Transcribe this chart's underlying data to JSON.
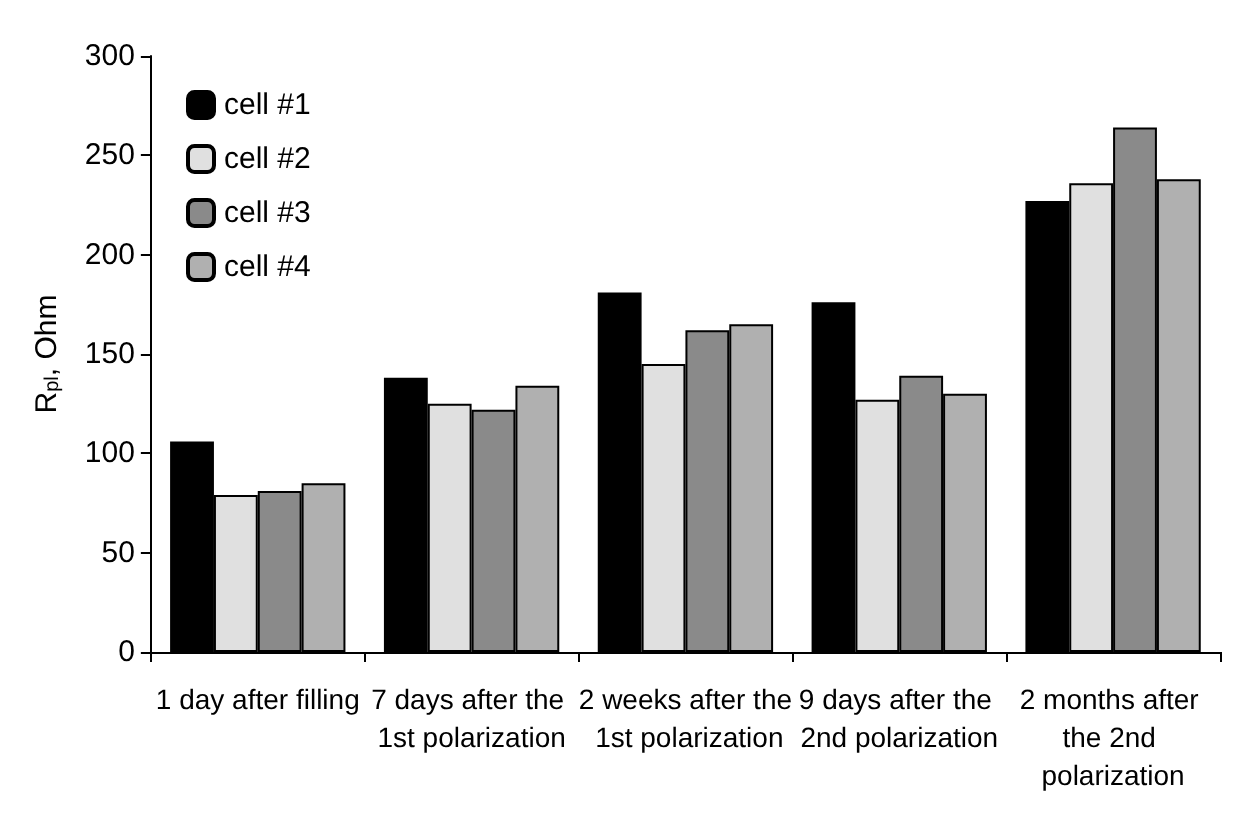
{
  "chart_data": {
    "type": "bar",
    "ylabel": "R$_{pl}$, Ohm",
    "categories": [
      "1 day after filling",
      "7 days after the 1st polarization",
      "2 weeks after the 1st polarization",
      "9 days after the 2nd polarization",
      "2 months after the 2nd polarization"
    ],
    "series": [
      {
        "name": "cell #1",
        "color": "#000000",
        "values": [
          106,
          138,
          181,
          176,
          227
        ]
      },
      {
        "name": "cell #2",
        "color": "#e0e0e0",
        "values": [
          79,
          125,
          145,
          127,
          236
        ]
      },
      {
        "name": "cell #3",
        "color": "#8a8a8a",
        "values": [
          81,
          122,
          162,
          139,
          264
        ]
      },
      {
        "name": "cell #4",
        "color": "#b0b0b0",
        "values": [
          85,
          134,
          165,
          130,
          238
        ]
      }
    ],
    "ylim": [
      0,
      300
    ],
    "yticks": [
      0,
      50,
      100,
      150,
      200,
      250,
      300
    ],
    "grid": false,
    "legend": "top left"
  }
}
